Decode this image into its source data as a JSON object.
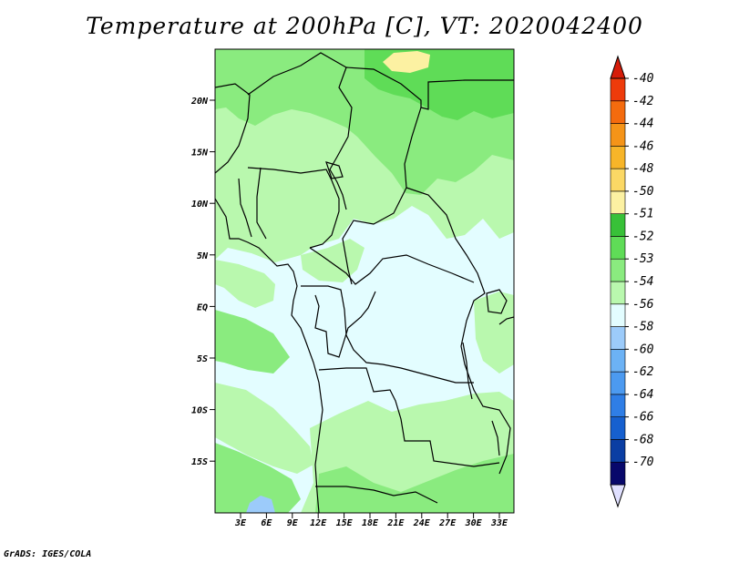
{
  "title": "Temperature at 200hPa [C], VT: 2020042400",
  "credit": "GrADS: IGES/COLA",
  "map": {
    "y_ticks": [
      "20N",
      "15N",
      "10N",
      "5N",
      "EQ",
      "5S",
      "10S",
      "15S"
    ],
    "x_ticks": [
      "3E",
      "6E",
      "9E",
      "12E",
      "15E",
      "18E",
      "21E",
      "24E",
      "27E",
      "30E",
      "33E"
    ]
  },
  "colorbar": {
    "labels": [
      "-40",
      "-42",
      "-44",
      "-46",
      "-48",
      "-50",
      "-51",
      "-52",
      "-53",
      "-54",
      "-56",
      "-58",
      "-60",
      "-62",
      "-64",
      "-66",
      "-68",
      "-70"
    ],
    "colors": [
      "#e0e0ff",
      "#08086b",
      "#0a3ea3",
      "#1660cf",
      "#2f7ee6",
      "#4c9af0",
      "#6cb2f5",
      "#9ccbfa",
      "#e3fdff",
      "#b9f8ae",
      "#8aeb7f",
      "#5fdc57",
      "#38c138",
      "#fcf1a2",
      "#fbd865",
      "#f7b529",
      "#f59418",
      "#f46b0e",
      "#ee3b0b",
      "#d61c09"
    ]
  },
  "palette": {
    "ocean_pale": "#e3fdff",
    "light_green": "#b9f8ae",
    "mid_green": "#8aeb7f",
    "dark_green": "#5fdc57",
    "yellow": "#fcf1a2",
    "light_blue": "#9ccbfa"
  }
}
